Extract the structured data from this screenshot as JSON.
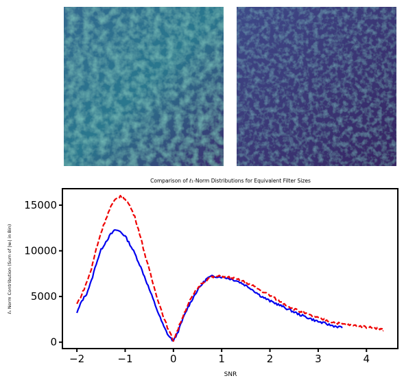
{
  "images": [
    {
      "name": "noise-map-left",
      "colormap": "viridis",
      "intensity": "higher"
    },
    {
      "name": "noise-map-right",
      "colormap": "viridis",
      "intensity": "lower"
    }
  ],
  "colors": {
    "series_blue": "#0000ee",
    "series_red": "#ee0000",
    "viridis_dark": "#3b2a6d",
    "viridis_mid": "#2c728e",
    "viridis_bright": "#b8de29"
  },
  "chart_data": {
    "type": "line",
    "title": "Comparison of ℓ₁-Norm Distributions for Equivalent Filter Sizes",
    "xlabel": "SNR",
    "ylabel": "ℓ₁ Norm Contribution (Sum of |wᵢ| in Bin)",
    "xlim": [
      -2.3,
      4.65
    ],
    "ylim": [
      -700,
      16800
    ],
    "xticks": [
      -2,
      -1,
      0,
      1,
      2,
      3,
      4
    ],
    "yticks": [
      0,
      5000,
      10000,
      15000
    ],
    "grid": false,
    "legend": "none",
    "series": [
      {
        "style": "solid",
        "color": "#0000ee",
        "x": [
          -2.0,
          -1.9,
          -1.8,
          -1.7,
          -1.6,
          -1.5,
          -1.4,
          -1.3,
          -1.2,
          -1.1,
          -1.0,
          -0.9,
          -0.8,
          -0.7,
          -0.6,
          -0.5,
          -0.4,
          -0.3,
          -0.2,
          -0.1,
          0.0,
          0.1,
          0.2,
          0.3,
          0.4,
          0.5,
          0.6,
          0.7,
          0.8,
          0.9,
          1.0,
          1.1,
          1.2,
          1.3,
          1.4,
          1.5,
          1.6,
          1.7,
          1.8,
          1.9,
          2.0,
          2.1,
          2.2,
          2.3,
          2.4,
          2.5,
          2.6,
          2.7,
          2.8,
          2.9,
          3.0,
          3.1,
          3.2,
          3.3,
          3.4,
          3.5
        ],
        "y": [
          3200,
          4500,
          5300,
          6700,
          8600,
          10100,
          11000,
          11800,
          12300,
          12100,
          11600,
          10700,
          9700,
          8500,
          7200,
          5800,
          4400,
          3000,
          1700,
          700,
          100,
          1200,
          2600,
          3800,
          4800,
          5700,
          6400,
          7000,
          7200,
          7200,
          7150,
          7050,
          6900,
          6750,
          6500,
          6200,
          5900,
          5500,
          5100,
          4800,
          4500,
          4300,
          4050,
          3800,
          3550,
          3300,
          3050,
          2850,
          2650,
          2450,
          2250,
          2100,
          1950,
          1800,
          1700,
          1600
        ]
      },
      {
        "style": "dashed",
        "color": "#ee0000",
        "x": [
          -2.0,
          -1.9,
          -1.8,
          -1.7,
          -1.6,
          -1.5,
          -1.4,
          -1.3,
          -1.2,
          -1.1,
          -1.0,
          -0.9,
          -0.8,
          -0.7,
          -0.6,
          -0.5,
          -0.4,
          -0.3,
          -0.2,
          -0.1,
          0.0,
          0.1,
          0.2,
          0.3,
          0.4,
          0.5,
          0.6,
          0.7,
          0.8,
          0.9,
          1.0,
          1.1,
          1.2,
          1.3,
          1.4,
          1.5,
          1.6,
          1.7,
          1.8,
          1.9,
          2.0,
          2.1,
          2.2,
          2.3,
          2.4,
          2.5,
          2.6,
          2.7,
          2.8,
          2.9,
          3.0,
          3.1,
          3.2,
          3.3,
          3.4,
          3.5,
          3.6,
          3.7,
          3.8,
          3.9,
          4.0,
          4.1,
          4.2,
          4.3,
          4.35
        ],
        "y": [
          4200,
          5200,
          6500,
          8000,
          10200,
          12000,
          13500,
          14800,
          15600,
          16000,
          15700,
          14900,
          13700,
          11900,
          9800,
          7900,
          6000,
          4300,
          2700,
          1300,
          200,
          1500,
          2900,
          4100,
          5100,
          5900,
          6500,
          6900,
          7100,
          7200,
          7200,
          7150,
          7050,
          6900,
          6750,
          6550,
          6300,
          6000,
          5700,
          5400,
          5100,
          4800,
          4500,
          4200,
          3900,
          3650,
          3400,
          3200,
          3000,
          2800,
          2650,
          2500,
          2350,
          2200,
          2100,
          2000,
          1900,
          1850,
          1800,
          1700,
          1650,
          1600,
          1550,
          1450,
          1300
        ]
      }
    ]
  }
}
